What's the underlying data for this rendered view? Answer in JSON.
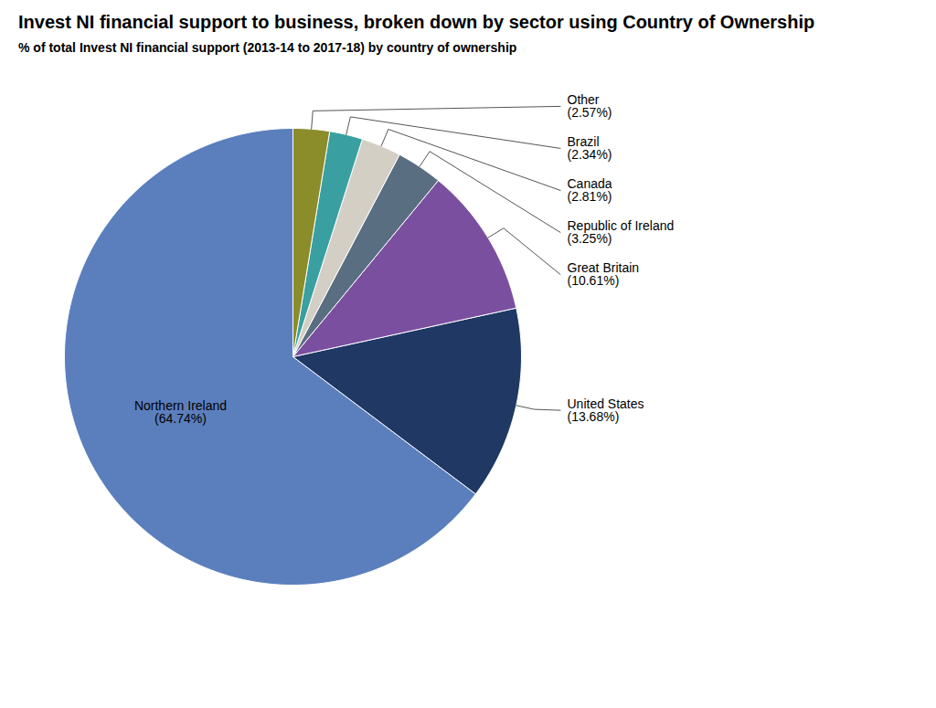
{
  "chart_data": {
    "type": "pie",
    "title": "Invest NI financial support to business, broken down by sector using Country of Ownership",
    "subtitle": "% of total Invest NI financial support (2013-14 to 2017-18) by country of ownership",
    "categories": [
      "Northern Ireland",
      "United States",
      "Great Britain",
      "Republic of Ireland",
      "Canada",
      "Brazil",
      "Other"
    ],
    "values": [
      64.74,
      13.68,
      10.61,
      3.25,
      2.81,
      2.34,
      2.57
    ],
    "value_labels": [
      "(64.74%)",
      "(13.68%)",
      "(10.61%)",
      "(3.25%)",
      "(2.81%)",
      "(2.34%)",
      "(2.57%)"
    ],
    "colors": [
      "#5b7fbd",
      "#1f3864",
      "#7b4fa0",
      "#5a6e82",
      "#d4cfc4",
      "#3a9fa0",
      "#8b8c2a"
    ],
    "data_labels": true
  }
}
